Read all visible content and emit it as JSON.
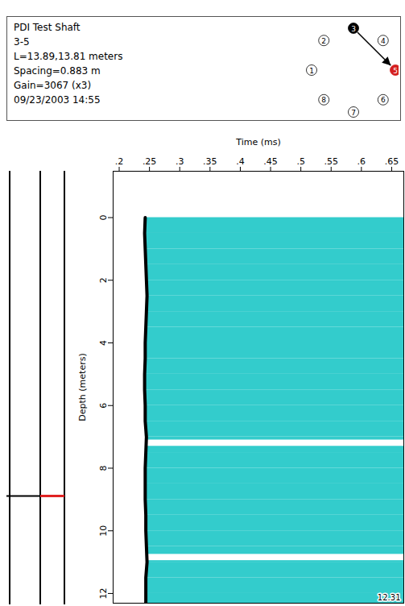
{
  "chart_data": {
    "type": "waterfall",
    "header": [
      "PDI Test Shaft",
      "3-5",
      "L=13.89,13.81 meters",
      "Spacing=0.883 m",
      "Gain=3067 (x3)",
      "09/23/2003 14:55"
    ],
    "tubes": {
      "labels": [
        "1",
        "2",
        "3",
        "4",
        "5",
        "6",
        "7",
        "8"
      ],
      "from": "3",
      "to": "5"
    },
    "x_label": "Time (ms)",
    "y_label": "Depth (meters)",
    "xlim": [
      0.19,
      0.67
    ],
    "xticks": [
      {
        "value": 0.2,
        "label": ".2"
      },
      {
        "value": 0.25,
        "label": ".25"
      },
      {
        "value": 0.3,
        "label": ".3"
      },
      {
        "value": 0.35,
        "label": ".35"
      },
      {
        "value": 0.4,
        "label": ".4"
      },
      {
        "value": 0.45,
        "label": ".45"
      },
      {
        "value": 0.5,
        "label": ".5"
      },
      {
        "value": 0.55,
        "label": ".55"
      },
      {
        "value": 0.6,
        "label": ".6"
      },
      {
        "value": 0.65,
        "label": ".65"
      }
    ],
    "ylim": [
      -1.48,
      12.31
    ],
    "yticks": [
      0,
      2,
      4,
      6,
      8,
      10,
      12
    ],
    "depths": [
      0,
      0.5,
      1,
      1.5,
      2,
      2.5,
      3,
      3.5,
      4,
      4.5,
      5,
      5.5,
      6,
      6.5,
      7,
      7.5,
      8,
      8.5,
      9,
      9.5,
      10,
      10.5,
      11,
      11.5,
      12,
      12.31
    ],
    "first_arrival": [
      0.243,
      0.242,
      0.243,
      0.244,
      0.245,
      0.246,
      0.245,
      0.244,
      0.243,
      0.243,
      0.242,
      0.242,
      0.243,
      0.243,
      0.245,
      0.244,
      0.243,
      0.243,
      0.243,
      0.244,
      0.244,
      0.245,
      0.246,
      0.244,
      0.244,
      0.244
    ],
    "weak_zones": [
      [
        7.1,
        7.3
      ],
      [
        10.75,
        10.95
      ]
    ],
    "marker_depth": 8.9,
    "depth_readout": "12.31",
    "color": "#33cccc"
  }
}
